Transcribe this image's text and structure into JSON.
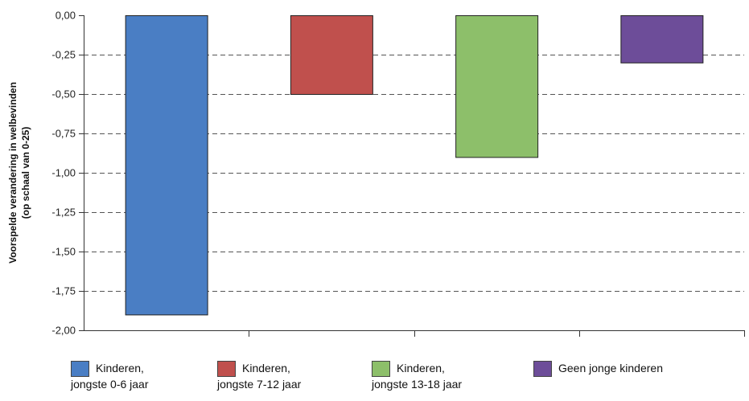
{
  "chart_data": {
    "type": "bar",
    "ylabel": [
      "Voorspelde verandering in welbevinden",
      "(op schaal van 0-25)"
    ],
    "ylim": [
      -2.0,
      0.0
    ],
    "yticks": [
      0.0,
      -0.25,
      -0.5,
      -0.75,
      -1.0,
      -1.25,
      -1.5,
      -1.75,
      -2.0
    ],
    "ytick_labels": [
      "0,00",
      "-0,25",
      "-0,50",
      "-0,75",
      "-1,00",
      "-1,25",
      "-1,50",
      "-1,75",
      "-2,00"
    ],
    "grid": "horizontal-dashed",
    "legend_position": "bottom",
    "categories": [
      [
        "Kinderen,",
        "jongste 0-6 jaar"
      ],
      [
        "Kinderen,",
        "jongste 7-12 jaar"
      ],
      [
        "Kinderen,",
        "jongste 13-18 jaar"
      ],
      [
        "Geen jonge kinderen"
      ]
    ],
    "values": [
      -1.9,
      -0.5,
      -0.9,
      -0.3
    ],
    "colors": [
      "#4a7ec4",
      "#c0504d",
      "#8dbf6a",
      "#6d4d99"
    ]
  },
  "legend": [
    {
      "line1": "Kinderen,",
      "line2": "jongste 0-6 jaar",
      "color": "#4a7ec4"
    },
    {
      "line1": "Kinderen,",
      "line2": "jongste 7-12 jaar",
      "color": "#c0504d"
    },
    {
      "line1": "Kinderen,",
      "line2": "jongste 13-18 jaar",
      "color": "#8dbf6a"
    },
    {
      "line1": "Geen jonge kinderen",
      "line2": "",
      "color": "#6d4d99"
    }
  ]
}
